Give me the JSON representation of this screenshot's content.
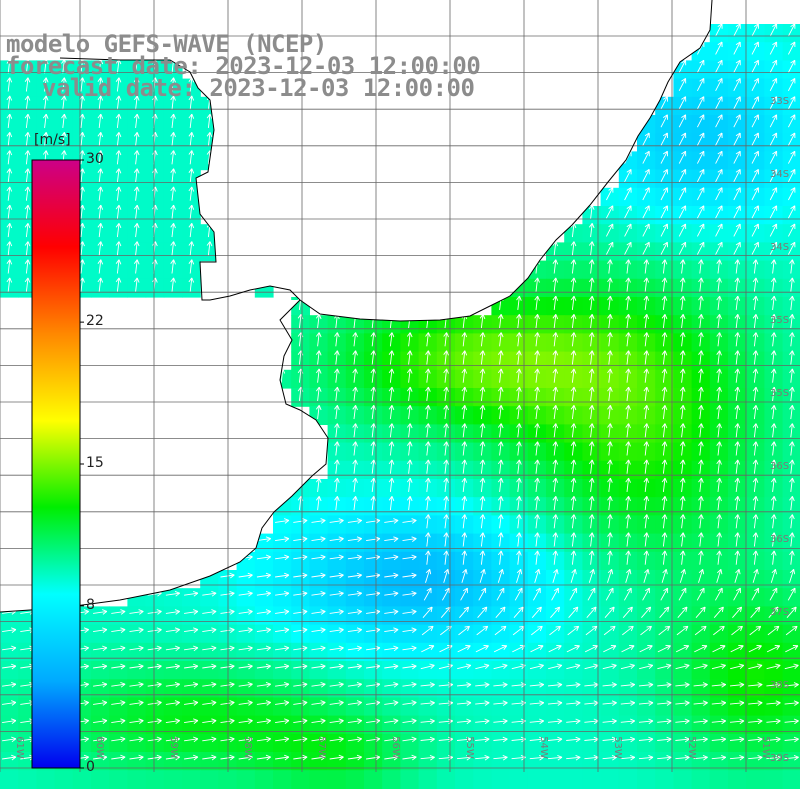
{
  "title": {
    "line1": "modelo GEFS-WAVE (NCEP)",
    "line2": "forecast date: 2023-12-03 12:00:00",
    "line3": "valid date: 2023-12-03 12:00:00"
  },
  "colorbar": {
    "unit": "[m/s]",
    "ticks": [
      {
        "value": 30,
        "label": "30"
      },
      {
        "value": 22,
        "label": "22"
      },
      {
        "value": 15,
        "label": "15"
      },
      {
        "value": 8,
        "label": "8"
      },
      {
        "value": 0,
        "label": "0"
      }
    ],
    "range": [
      0,
      30
    ],
    "gradient_colors": [
      "#0000ee",
      "#00aaff",
      "#00ffff",
      "#00ee00",
      "#ffff00",
      "#ff8800",
      "#ff0000",
      "#cc0088"
    ]
  },
  "map": {
    "field": "wind speed",
    "land_color": "#ffffff",
    "coast_color": "#000000",
    "grid_color": "#666666",
    "arrow_color": "#ffffff",
    "lon_labels": [
      "61W",
      "60W",
      "59W",
      "58W",
      "57W",
      "56W",
      "55W",
      "54W",
      "53W",
      "52W",
      "51W"
    ],
    "lat_labels": [
      "33S",
      "34S",
      "34S",
      "35S",
      "35S",
      "36S",
      "36S",
      "37S",
      "38S",
      "39S"
    ]
  }
}
